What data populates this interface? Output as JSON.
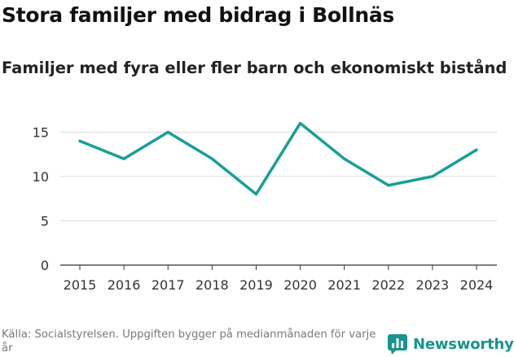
{
  "title": "Stora familjer med bidrag i Bollnäs",
  "subtitle": "Familjer med fyra eller fler barn och ekonomiskt bistånd",
  "source": "Källa: Socialstyrelsen. Uppgiften bygger på medianmånaden för varje år",
  "brand": {
    "name": "Newsworthy",
    "icon": "bar-chart-icon"
  },
  "colors": {
    "line": "#17a097",
    "grid": "#dcdcdc",
    "axis": "#333333",
    "brand": "#16958c"
  },
  "chart_data": {
    "type": "line",
    "title": "Stora familjer med bidrag i Bollnäs",
    "subtitle": "Familjer med fyra eller fler barn och ekonomiskt bistånd",
    "xlabel": "",
    "ylabel": "",
    "x": [
      "2015",
      "2016",
      "2017",
      "2018",
      "2019",
      "2020",
      "2021",
      "2022",
      "2023",
      "2024"
    ],
    "series": [
      {
        "name": "Familjer",
        "values": [
          14,
          12,
          15,
          12,
          8,
          16,
          12,
          9,
          10,
          13
        ]
      }
    ],
    "yticks": [
      0,
      5,
      10,
      15
    ],
    "ylim": [
      0,
      16
    ],
    "grid": true
  }
}
